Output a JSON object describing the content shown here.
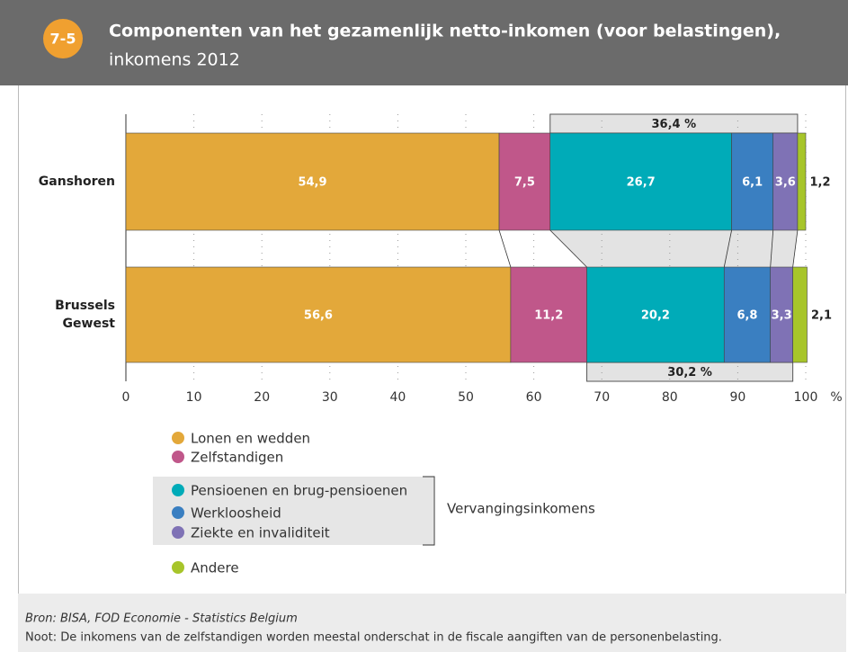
{
  "badge": "7-5",
  "chart_data": {
    "type": "stacked-bar-horizontal",
    "title": "Componenten van het gezamenlijk netto-inkomen (voor belastingen),",
    "subtitle": "inkomens 2012",
    "categories": [
      "Ganshoren",
      "Brussels Gewest"
    ],
    "series": [
      {
        "name": "Lonen en wedden",
        "color": "#e3a83a",
        "values": [
          54.9,
          56.6
        ],
        "value_labels": [
          "54,9",
          "56,6"
        ]
      },
      {
        "name": "Zelfstandigen",
        "color": "#c0578a",
        "values": [
          7.5,
          11.2
        ],
        "value_labels": [
          "7,5",
          "11,2"
        ]
      },
      {
        "name": "Pensioenen en brug-pensioenen",
        "color": "#00abb8",
        "values": [
          26.7,
          20.2
        ],
        "value_labels": [
          "26,7",
          "20,2"
        ]
      },
      {
        "name": "Werkloosheid",
        "color": "#3a7fc1",
        "values": [
          6.1,
          6.8
        ],
        "value_labels": [
          "6,1",
          "6,8"
        ]
      },
      {
        "name": "Ziekte en invaliditeit",
        "color": "#7f72b5",
        "values": [
          3.6,
          3.3
        ],
        "value_labels": [
          "3,6",
          "3,3"
        ]
      },
      {
        "name": "Andere",
        "color": "#a7c52a",
        "values": [
          1.2,
          2.1
        ],
        "value_labels": [
          "1,2",
          "2,1"
        ]
      }
    ],
    "legend_group": {
      "label": "Vervangingsinkomens",
      "series": [
        2,
        3,
        4
      ]
    },
    "group_totals": [
      {
        "value": 36.4,
        "label": "36,4 %"
      },
      {
        "value": 30.2,
        "label": "30,2 %"
      }
    ],
    "xlabel": "%",
    "xlim": [
      0,
      100
    ],
    "xticks": [
      0,
      10,
      20,
      30,
      40,
      50,
      60,
      70,
      80,
      90,
      100
    ],
    "grid": true
  },
  "footer": {
    "source": "Bron: BISA, FOD Economie - Statistics Belgium",
    "note": "Noot: De inkomens van de zelfstandigen worden meestal onderschat in de fiscale aangiften van de personenbelasting."
  }
}
